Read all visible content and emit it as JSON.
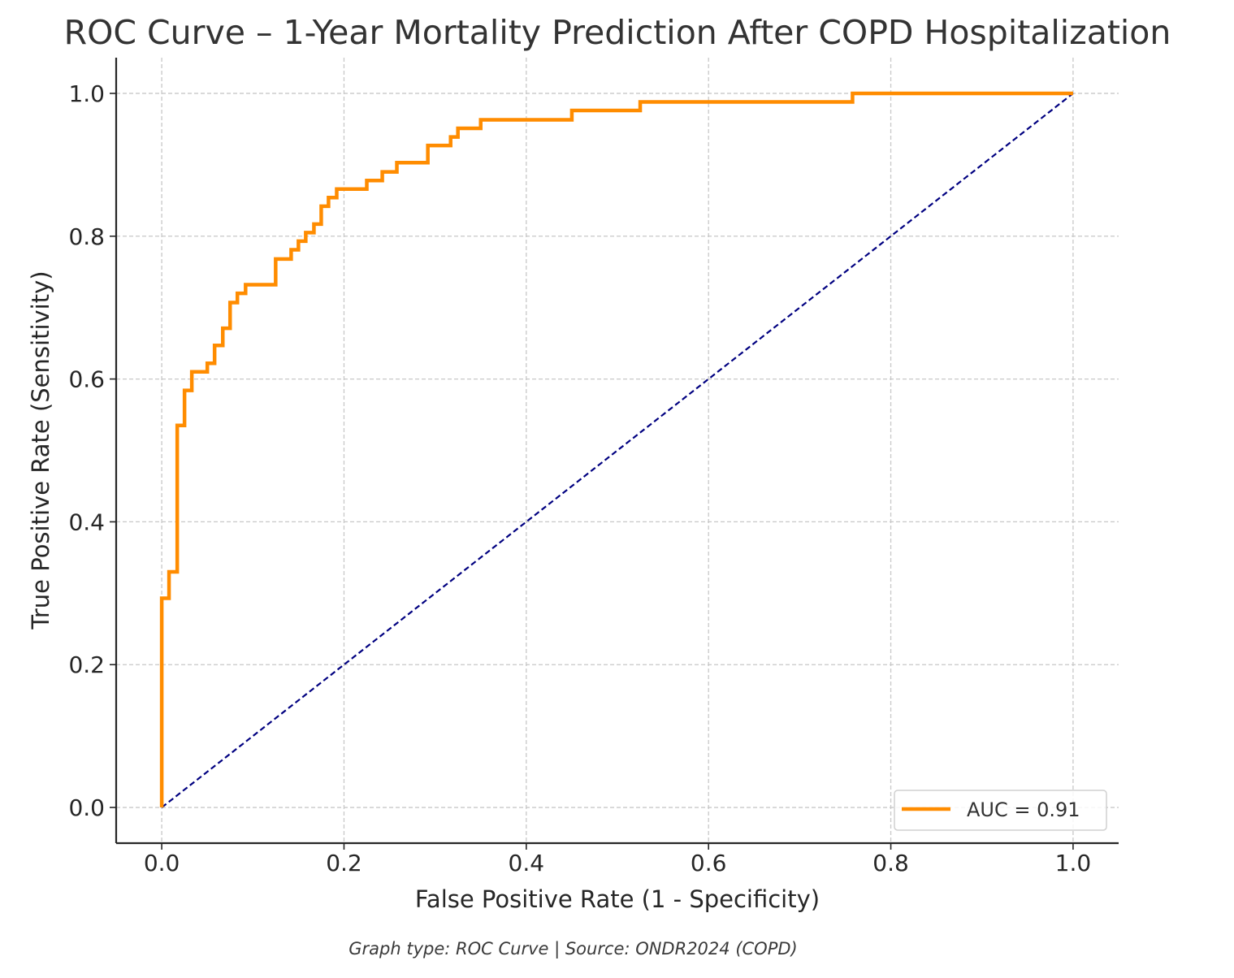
{
  "chart_data": {
    "type": "line",
    "title": "ROC Curve – 1-Year Mortality Prediction After COPD Hospitalization",
    "xlabel": "False Positive Rate (1 - Specificity)",
    "ylabel": "True Positive Rate (Sensitivity)",
    "xlim": [
      -0.05,
      1.05
    ],
    "ylim": [
      -0.05,
      1.05
    ],
    "x_ticks": [
      0.0,
      0.2,
      0.4,
      0.6,
      0.8,
      1.0
    ],
    "x_tick_labels": [
      "0.0",
      "0.2",
      "0.4",
      "0.6",
      "0.8",
      "1.0"
    ],
    "y_ticks": [
      0.0,
      0.2,
      0.4,
      0.6,
      0.8,
      1.0
    ],
    "y_tick_labels": [
      "0.0",
      "0.2",
      "0.4",
      "0.6",
      "0.8",
      "1.0"
    ],
    "grid": true,
    "legend_position": "lower-right",
    "series": [
      {
        "name": "AUC = 0.91",
        "color": "#ff8c00",
        "style": "step",
        "x": [
          0.0,
          0.0,
          0.008,
          0.008,
          0.017,
          0.017,
          0.025,
          0.025,
          0.033,
          0.033,
          0.05,
          0.05,
          0.058,
          0.058,
          0.067,
          0.067,
          0.075,
          0.075,
          0.083,
          0.083,
          0.092,
          0.092,
          0.125,
          0.125,
          0.142,
          0.142,
          0.15,
          0.15,
          0.158,
          0.158,
          0.167,
          0.167,
          0.175,
          0.175,
          0.183,
          0.183,
          0.192,
          0.192,
          0.225,
          0.225,
          0.242,
          0.242,
          0.258,
          0.258,
          0.292,
          0.292,
          0.317,
          0.317,
          0.325,
          0.325,
          0.35,
          0.35,
          0.45,
          0.45,
          0.525,
          0.525,
          0.758,
          0.758,
          1.0
        ],
        "y": [
          0.0,
          0.293,
          0.293,
          0.33,
          0.33,
          0.535,
          0.535,
          0.584,
          0.584,
          0.61,
          0.61,
          0.622,
          0.622,
          0.647,
          0.647,
          0.671,
          0.671,
          0.707,
          0.707,
          0.72,
          0.72,
          0.732,
          0.732,
          0.768,
          0.768,
          0.781,
          0.781,
          0.793,
          0.793,
          0.805,
          0.805,
          0.817,
          0.817,
          0.842,
          0.842,
          0.854,
          0.854,
          0.866,
          0.866,
          0.878,
          0.878,
          0.89,
          0.89,
          0.903,
          0.903,
          0.927,
          0.927,
          0.939,
          0.939,
          0.951,
          0.951,
          0.963,
          0.963,
          0.976,
          0.976,
          0.988,
          0.988,
          1.0,
          1.0
        ]
      },
      {
        "name": "",
        "color": "#000080",
        "style": "dashed",
        "x": [
          0.0,
          1.0
        ],
        "y": [
          0.0,
          1.0
        ]
      }
    ],
    "legend_entries": [
      "AUC = 0.91"
    ]
  },
  "caption": "Graph type: ROC Curve | Source: ONDR2024 (COPD)"
}
